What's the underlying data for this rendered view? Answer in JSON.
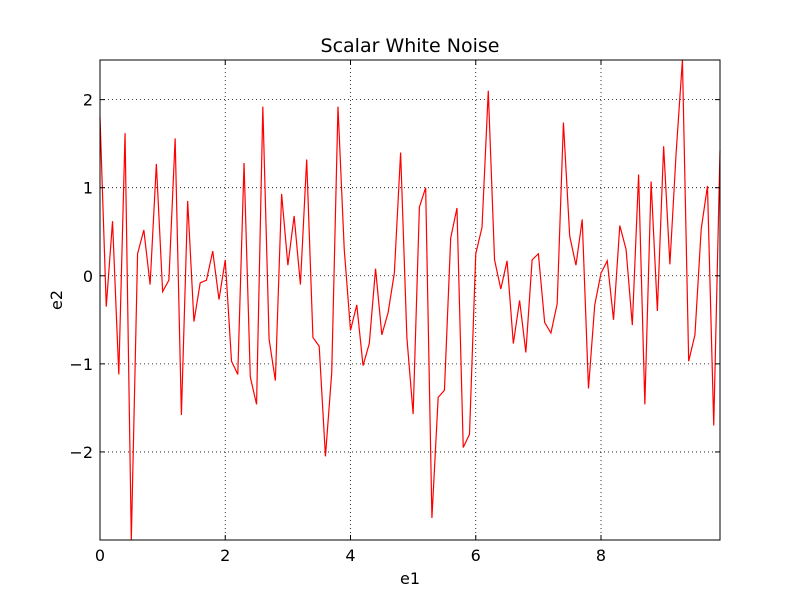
{
  "chart_data": {
    "type": "line",
    "title": "Scalar White Noise",
    "xlabel": "e1",
    "ylabel": "e2",
    "xlim": [
      0,
      9.9
    ],
    "ylim": [
      -3,
      2.45
    ],
    "grid": true,
    "x_ticks": [
      0,
      2,
      4,
      6,
      8
    ],
    "x_tick_labels": [
      "0",
      "2",
      "4",
      "6",
      "8"
    ],
    "y_ticks": [
      2,
      1,
      0,
      -1,
      -2
    ],
    "y_tick_labels": [
      "2",
      "1",
      "0",
      "−1",
      "−2"
    ],
    "line_color": "#ff0000",
    "x_start": 0,
    "x_step": 0.1,
    "series": [
      {
        "values": [
          1.8,
          -0.35,
          0.62,
          -1.12,
          1.62,
          -3.0,
          0.25,
          0.52,
          -0.1,
          1.27,
          -0.18,
          -0.05,
          1.56,
          -1.58,
          0.85,
          -0.52,
          -0.08,
          -0.05,
          0.28,
          -0.27,
          0.18,
          -0.97,
          -1.12,
          1.28,
          -1.15,
          -1.46,
          1.92,
          -0.72,
          -1.19,
          0.93,
          0.12,
          0.68,
          -0.1,
          1.32,
          -0.7,
          -0.8,
          -2.05,
          -1.1,
          1.92,
          0.3,
          -0.62,
          -0.33,
          -1.02,
          -0.77,
          0.08,
          -0.67,
          -0.42,
          0.03,
          1.4,
          -0.7,
          -1.57,
          0.78,
          1.0,
          -2.75,
          -1.38,
          -1.3,
          0.43,
          0.77,
          -1.95,
          -1.8,
          0.25,
          0.55,
          2.1,
          0.18,
          -0.15,
          0.17,
          -0.77,
          -0.28,
          -0.87,
          0.18,
          0.25,
          -0.53,
          -0.65,
          -0.32,
          1.74,
          0.45,
          0.12,
          0.64,
          -1.28,
          -0.33,
          0.03,
          0.17,
          -0.5,
          0.57,
          0.3,
          -0.56,
          1.15,
          -1.46,
          1.07,
          -0.4,
          1.47,
          0.13,
          1.4,
          2.45,
          -0.97,
          -0.67,
          0.53,
          1.02,
          -1.7,
          1.42
        ]
      }
    ]
  }
}
